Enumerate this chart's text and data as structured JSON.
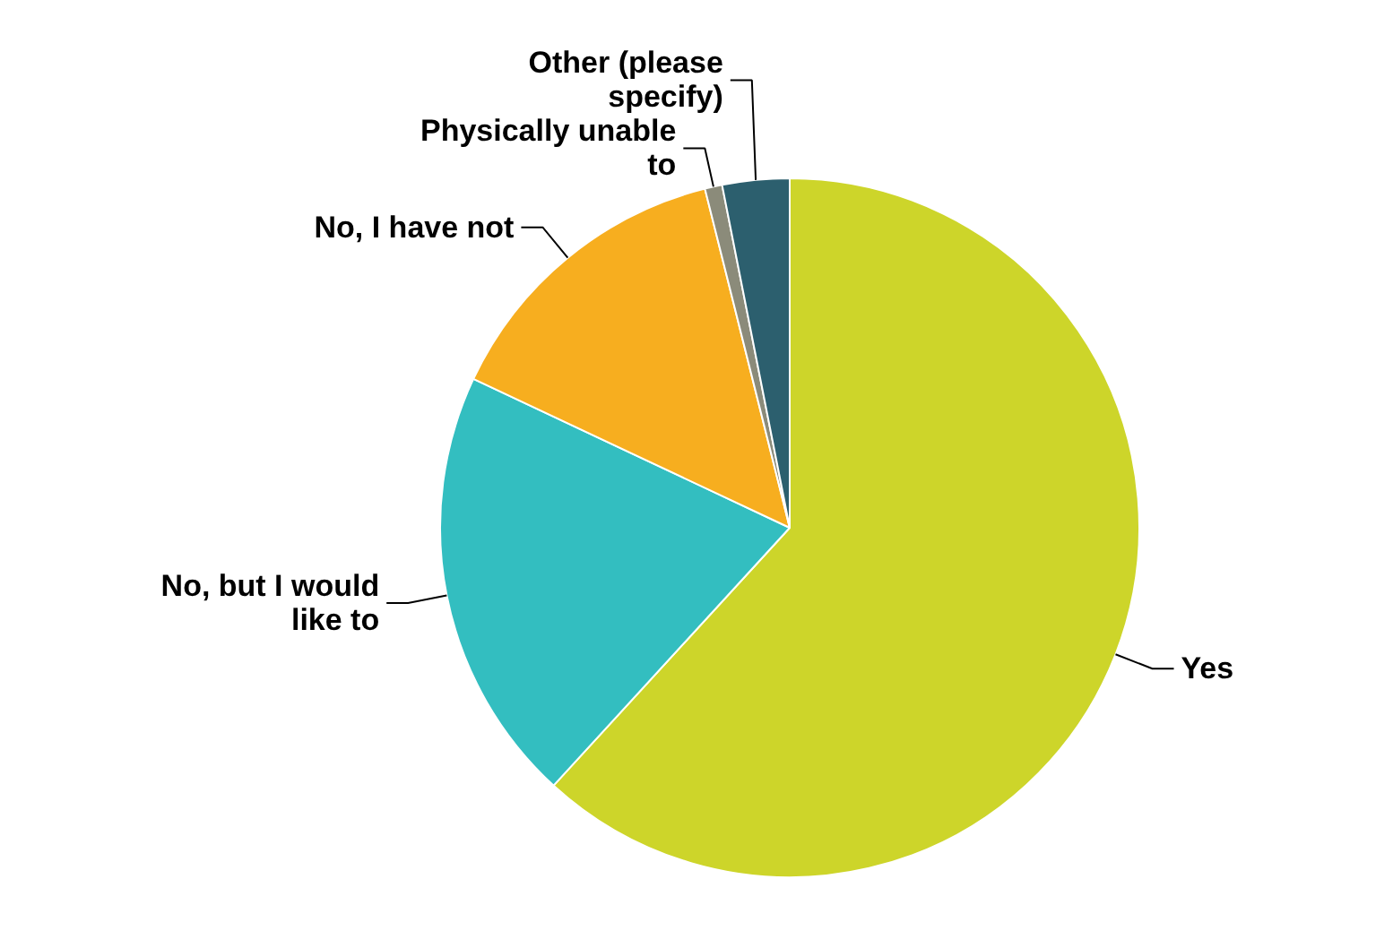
{
  "chart_data": {
    "type": "pie",
    "categories": [
      "Yes",
      "No, but I would like to",
      "No, I have not",
      "Physically unable to",
      "Other (please specify)"
    ],
    "values": [
      61.8,
      20.2,
      14.1,
      0.8,
      3.1
    ],
    "colors": [
      "#cdd52a",
      "#33bec0",
      "#f7ae1f",
      "#8b8b7a",
      "#2c5f6e"
    ]
  }
}
